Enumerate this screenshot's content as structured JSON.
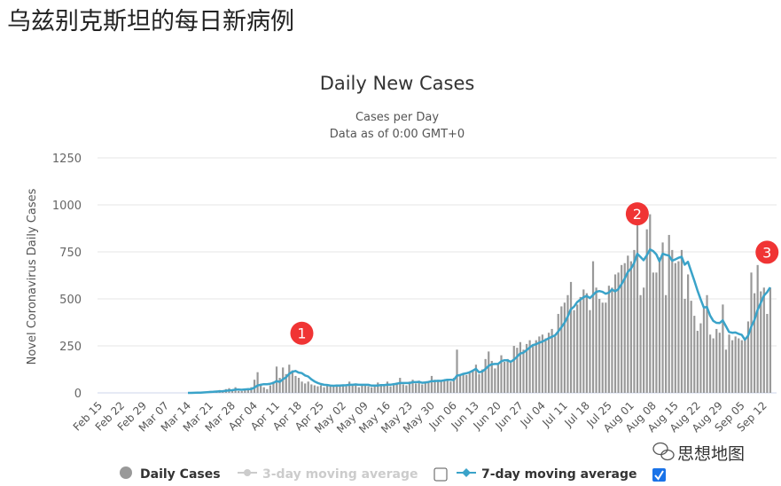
{
  "page_title": "乌兹别克斯坦的每日新病例",
  "watermark": "思想地图",
  "chart_data": {
    "type": "bar",
    "title": "Daily New Cases",
    "subtitle_lines": [
      "Cases per Day",
      "Data as of 0:00 GMT+0"
    ],
    "ylabel": "Novel Coronavirus Daily Cases",
    "xlabel": "",
    "ylim": [
      0,
      1250
    ],
    "yticks": [
      0,
      250,
      500,
      750,
      1000,
      1250
    ],
    "grid": true,
    "xtick_labels": [
      "Feb 15",
      "Feb 22",
      "Feb 29",
      "Mar 07",
      "Mar 14",
      "Mar 21",
      "Mar 28",
      "Apr 04",
      "Apr 11",
      "Apr 18",
      "Apr 25",
      "May 02",
      "May 09",
      "May 16",
      "May 23",
      "May 30",
      "Jun 06",
      "Jun 13",
      "Jun 20",
      "Jun 27",
      "Jul 04",
      "Jul 11",
      "Jul 18",
      "Jul 25",
      "Aug 01",
      "Aug 08",
      "Aug 15",
      "Aug 22",
      "Aug 29",
      "Sep 05",
      "Sep 12"
    ],
    "series": [
      {
        "name": "Daily Cases",
        "type": "bar",
        "color": "#999999",
        "values": [
          0,
          0,
          0,
          0,
          0,
          0,
          0,
          0,
          0,
          0,
          0,
          0,
          0,
          0,
          0,
          0,
          0,
          0,
          0,
          0,
          0,
          0,
          0,
          0,
          0,
          0,
          0,
          0,
          0,
          1,
          2,
          5,
          3,
          4,
          9,
          10,
          8,
          10,
          15,
          6,
          20,
          25,
          15,
          30,
          10,
          10,
          20,
          25,
          30,
          70,
          110,
          40,
          30,
          20,
          40,
          60,
          140,
          80,
          135,
          100,
          150,
          120,
          90,
          80,
          60,
          50,
          60,
          45,
          40,
          35,
          40,
          30,
          45,
          40,
          35,
          45,
          40,
          45,
          35,
          60,
          40,
          50,
          30,
          40,
          45,
          35,
          30,
          40,
          55,
          45,
          40,
          60,
          35,
          50,
          55,
          80,
          45,
          40,
          60,
          70,
          50,
          65,
          45,
          60,
          55,
          90,
          70,
          65,
          60,
          70,
          75,
          60,
          80,
          230,
          90,
          100,
          95,
          110,
          120,
          150,
          100,
          125,
          180,
          220,
          170,
          130,
          150,
          200,
          165,
          180,
          160,
          250,
          240,
          270,
          230,
          260,
          280,
          250,
          280,
          300,
          310,
          290,
          320,
          340,
          300,
          420,
          460,
          480,
          520,
          590,
          440,
          470,
          510,
          550,
          530,
          440,
          700,
          560,
          500,
          480,
          480,
          570,
          560,
          630,
          640,
          680,
          690,
          730,
          700,
          760,
          980,
          520,
          560,
          870,
          950,
          640,
          640,
          720,
          800,
          520,
          840,
          760,
          690,
          700,
          760,
          500,
          630,
          490,
          410,
          330,
          370,
          450,
          520,
          310,
          290,
          340,
          320,
          470,
          230,
          310,
          280,
          300,
          290,
          280,
          290,
          380,
          640,
          530,
          680,
          540,
          560,
          420,
          560
        ]
      },
      {
        "name": "3-day moving average",
        "type": "line",
        "color": "#cccccc",
        "visible": false
      },
      {
        "name": "7-day moving average",
        "type": "line",
        "color": "#3aa3c9",
        "visible": true
      }
    ],
    "annotations": [
      {
        "label": "1",
        "date": "Apr 19",
        "color": "#f03434"
      },
      {
        "label": "2",
        "date": "Aug 03",
        "color": "#f03434"
      },
      {
        "label": "3",
        "date": "Sep 13",
        "color": "#f03434"
      }
    ],
    "legend": {
      "placement": "bottom",
      "items": [
        "Daily Cases",
        "3-day moving average",
        "7-day moving average"
      ],
      "checkbox_3day": false,
      "checkbox_7day": true
    }
  }
}
